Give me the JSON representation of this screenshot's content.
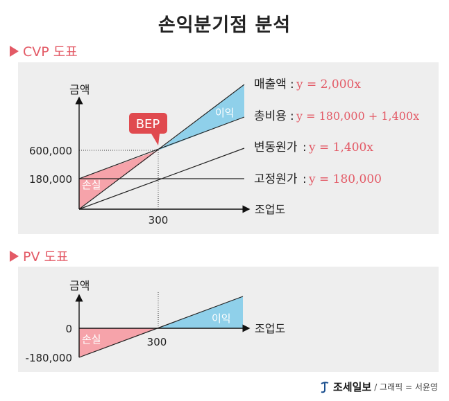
{
  "title": "손익분기점 분석",
  "cvp": {
    "heading": "CVP 도표",
    "y_axis_label": "금액",
    "x_axis_label": "조업도",
    "bep_label": "BEP",
    "profit_label": "이익",
    "loss_label": "손실",
    "x_tick": "300",
    "y_ticks": [
      "600,000",
      "180,000"
    ],
    "lines": [
      {
        "name": "매출액",
        "formula": "y = 2,000x"
      },
      {
        "name": "총비용",
        "formula": "y = 180,000 + 1,400x"
      },
      {
        "name": "변동원가",
        "formula": "y = 1,400x"
      },
      {
        "name": "고정원가",
        "formula": "y = 180,000"
      }
    ]
  },
  "pv": {
    "heading": "PV 도표",
    "y_axis_label": "금액",
    "x_axis_label": "조업도",
    "profit_label": "이익",
    "loss_label": "손실",
    "x_tick": "300",
    "y_ticks": [
      "0",
      "-180,000"
    ]
  },
  "footer": {
    "brand": "조세일보",
    "credit": "/ 그래픽 = 서윤영"
  },
  "colors": {
    "accent": "#e35a66",
    "profit_fill": "#8fd0ea",
    "loss_fill": "#f6a3aa",
    "bep_badge": "#e04a4f"
  },
  "chart_data": [
    {
      "type": "line",
      "title": "CVP 도표",
      "xlabel": "조업도",
      "ylabel": "금액",
      "x": [
        0,
        300
      ],
      "series": [
        {
          "name": "매출액",
          "values": [
            0,
            600000
          ]
        },
        {
          "name": "총비용",
          "values": [
            180000,
            600000
          ]
        },
        {
          "name": "변동원가",
          "values": [
            0,
            420000
          ]
        },
        {
          "name": "고정원가",
          "values": [
            180000,
            180000
          ]
        }
      ],
      "bep": {
        "x": 300,
        "y": 600000
      }
    },
    {
      "type": "line",
      "title": "PV 도표",
      "xlabel": "조업도",
      "ylabel": "금액",
      "x": [
        0,
        300
      ],
      "series": [
        {
          "values": [
            -180000,
            0
          ]
        }
      ]
    }
  ]
}
